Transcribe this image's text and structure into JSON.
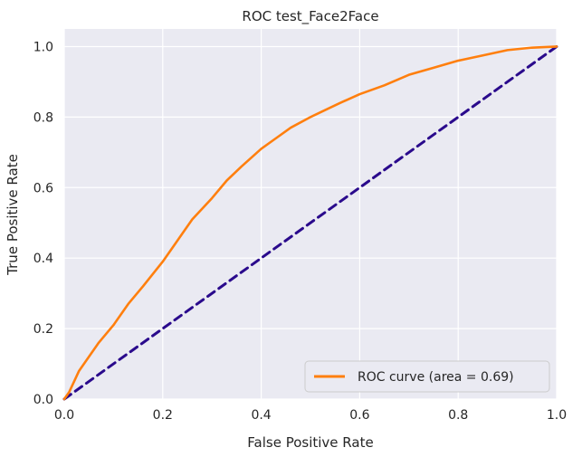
{
  "chart_data": {
    "type": "line",
    "title": "ROC test_Face2Face",
    "xlabel": "False Positive Rate",
    "ylabel": "True Positive Rate",
    "xlim": [
      0.0,
      1.0
    ],
    "ylim": [
      0.0,
      1.05
    ],
    "x_ticks": [
      "0.0",
      "0.2",
      "0.4",
      "0.6",
      "0.8",
      "1.0"
    ],
    "y_ticks": [
      "0.0",
      "0.2",
      "0.4",
      "0.6",
      "0.8",
      "1.0"
    ],
    "grid": true,
    "legend_position": "lower right",
    "series": [
      {
        "name": "ROC curve (area = 0.69)",
        "style": "solid",
        "color": "#ff7f0e",
        "points": [
          [
            0.0,
            0.0
          ],
          [
            0.01,
            0.02
          ],
          [
            0.02,
            0.05
          ],
          [
            0.03,
            0.08
          ],
          [
            0.05,
            0.12
          ],
          [
            0.07,
            0.16
          ],
          [
            0.1,
            0.21
          ],
          [
            0.13,
            0.27
          ],
          [
            0.16,
            0.32
          ],
          [
            0.2,
            0.39
          ],
          [
            0.23,
            0.45
          ],
          [
            0.26,
            0.51
          ],
          [
            0.3,
            0.57
          ],
          [
            0.33,
            0.62
          ],
          [
            0.36,
            0.66
          ],
          [
            0.4,
            0.71
          ],
          [
            0.43,
            0.74
          ],
          [
            0.46,
            0.77
          ],
          [
            0.5,
            0.8
          ],
          [
            0.53,
            0.82
          ],
          [
            0.56,
            0.84
          ],
          [
            0.6,
            0.865
          ],
          [
            0.65,
            0.89
          ],
          [
            0.7,
            0.92
          ],
          [
            0.75,
            0.94
          ],
          [
            0.8,
            0.96
          ],
          [
            0.85,
            0.975
          ],
          [
            0.9,
            0.99
          ],
          [
            0.95,
            0.997
          ],
          [
            1.0,
            1.0
          ]
        ]
      },
      {
        "name": "",
        "style": "dashed",
        "color": "#2a0a8c",
        "points": [
          [
            0.0,
            0.0
          ],
          [
            1.0,
            1.0
          ]
        ]
      }
    ]
  },
  "colors": {
    "plot_background": "#eaeaf2",
    "grid": "#ffffff",
    "text": "#262626"
  }
}
